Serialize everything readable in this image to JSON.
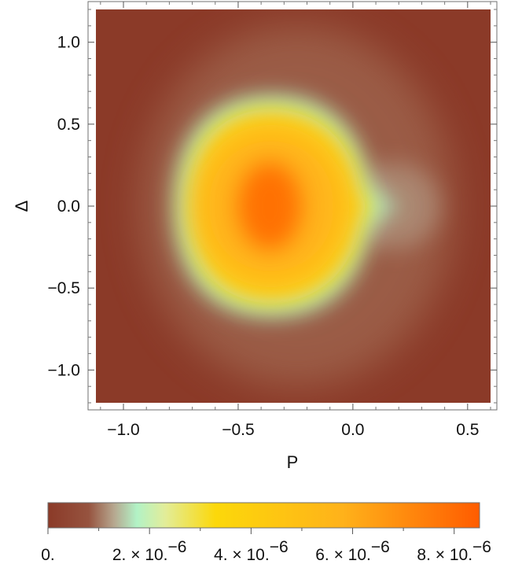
{
  "chart_data": {
    "type": "heatmap",
    "title": "",
    "xlabel": "P",
    "ylabel": "Δ",
    "xlim": [
      -1.12,
      0.6
    ],
    "ylim": [
      -1.2,
      1.2
    ],
    "x_ticks": [
      {
        "value": -1.0,
        "label": "−1.0"
      },
      {
        "value": -0.5,
        "label": "−0.5"
      },
      {
        "value": 0.0,
        "label": "0.0"
      },
      {
        "value": 0.5,
        "label": "0.5"
      }
    ],
    "y_ticks": [
      {
        "value": 1.0,
        "label": "1.0"
      },
      {
        "value": 0.5,
        "label": "0.5"
      },
      {
        "value": 0.0,
        "label": "0.0"
      },
      {
        "value": -0.5,
        "label": "−0.5"
      },
      {
        "value": -1.0,
        "label": "−1.0"
      }
    ],
    "colorbar": {
      "range": [
        0,
        8.5e-06
      ],
      "tick_labels": [
        {
          "value": 0,
          "base": "0.",
          "exponent": ""
        },
        {
          "value": 2e-06,
          "base": "2. × 10.",
          "exponent": "−6"
        },
        {
          "value": 4e-06,
          "base": "4. × 10.",
          "exponent": "−6"
        },
        {
          "value": 6e-06,
          "base": "6. × 10.",
          "exponent": "−6"
        },
        {
          "value": 8e-06,
          "base": "8. × 10.",
          "exponent": "−6"
        }
      ],
      "color_stops": [
        {
          "value": 0,
          "color": "#8b3a28"
        },
        {
          "value": 8e-07,
          "color": "#96533f"
        },
        {
          "value": 1.3e-06,
          "color": "#b6a78f"
        },
        {
          "value": 1.75e-06,
          "color": "#b2f2c6"
        },
        {
          "value": 2.3e-06,
          "color": "#e2ed9a"
        },
        {
          "value": 3.3e-06,
          "color": "#fcd80a"
        },
        {
          "value": 5.8e-06,
          "color": "#ffb21a"
        },
        {
          "value": 8.5e-06,
          "color": "#ff5c00"
        }
      ]
    },
    "features": {
      "peak": {
        "P": -0.35,
        "Delta": 0.0,
        "value": 8.5e-06
      },
      "region_description_note_free": true
    }
  }
}
